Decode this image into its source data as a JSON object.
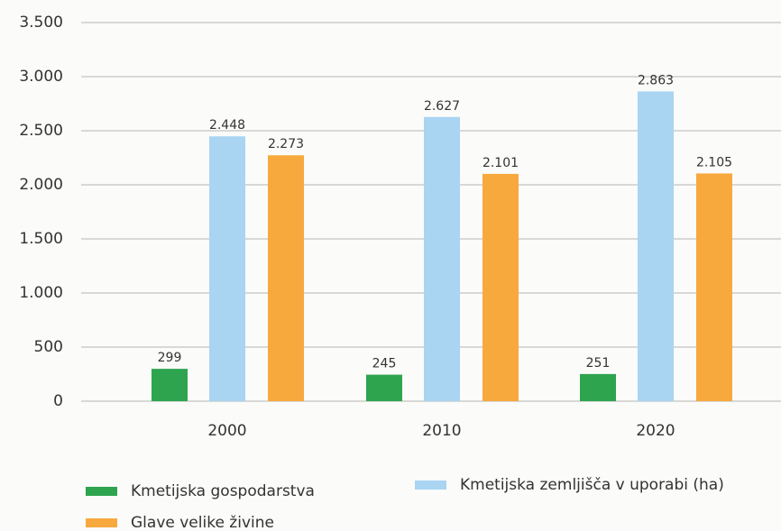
{
  "chart_data": {
    "type": "bar",
    "categories": [
      "2000",
      "2010",
      "2020"
    ],
    "series": [
      {
        "name": "Kmetijska gospodarstva",
        "color": "#2ea44f",
        "values": [
          299,
          245,
          251
        ],
        "value_labels": [
          "299",
          "245",
          "251"
        ]
      },
      {
        "name": "Kmetijska zemljišča v uporabi (ha)",
        "color": "#a9d4f2",
        "values": [
          2448,
          2627,
          2863
        ],
        "value_labels": [
          "2.448",
          "2.627",
          "2.863"
        ]
      },
      {
        "name": "Glave velike živine",
        "color": "#f7a93e",
        "values": [
          2273,
          2101,
          2105
        ],
        "value_labels": [
          "2.273",
          "2.101",
          "2.105"
        ]
      }
    ],
    "ylim": [
      0,
      3500
    ],
    "yticks": [
      0,
      500,
      {
        "value": 1000,
        "label": "1.000"
      },
      {
        "value": 1500,
        "label": "1.500"
      },
      {
        "value": 2000,
        "label": "2.000"
      },
      {
        "value": 2500,
        "label": "2.500"
      },
      {
        "value": 3000,
        "label": "3.000"
      },
      {
        "value": 3500,
        "label": "3.500"
      }
    ],
    "grid": true
  }
}
